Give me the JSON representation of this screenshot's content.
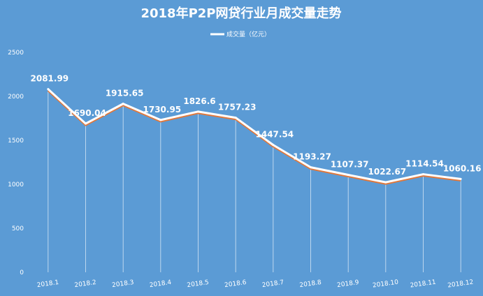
{
  "chart_data": {
    "type": "line",
    "title": "2018年P2P网贷行业月成交量走势",
    "categories": [
      "2018.1",
      "2018.2",
      "2018.3",
      "2018.4",
      "2018.5",
      "2018.6",
      "2018.7",
      "2018.8",
      "2018.9",
      "2018.10",
      "2018.11",
      "2018.12"
    ],
    "series": [
      {
        "name": "成交量（亿元）",
        "values": [
          2081.99,
          1690.04,
          1915.65,
          1730.95,
          1826.6,
          1757.23,
          1447.54,
          1193.27,
          1107.37,
          1022.67,
          1114.54,
          1060.16
        ],
        "labels": [
          "2081.99",
          "1690.04",
          "1915.65",
          "1730.95",
          "1826.6",
          "1757.23",
          "1447.54",
          "1193.27",
          "1107.37",
          "1022.67",
          "1114.54",
          "1060.16"
        ]
      }
    ],
    "y_ticks": [
      "0",
      "500",
      "1000",
      "1500",
      "2000",
      "2500"
    ],
    "ylim": [
      0,
      2500
    ],
    "xlabel": "",
    "ylabel": "",
    "legend": "top-center",
    "grid": false,
    "colors": {
      "background": "#5b9bd5",
      "line": "#ffffff",
      "line_shadow": "#e0783c",
      "drop_line": "#ffffff",
      "text": "#ffffff"
    }
  }
}
